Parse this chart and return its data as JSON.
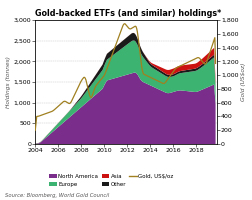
{
  "title": "Gold-backed ETFs (and similar) holdings*",
  "ylabel_left": "Holdings (tonnes)",
  "ylabel_right": "Gold (US$oz)",
  "source": "Source: Bloomberg, World Gold Council",
  "ylim_left": [
    0,
    3000
  ],
  "ylim_right": [
    0,
    1800
  ],
  "yticks_left": [
    0,
    500,
    1000,
    1500,
    2000,
    2500,
    3000
  ],
  "yticks_right": [
    0,
    200,
    400,
    600,
    800,
    1000,
    1200,
    1400,
    1600,
    1800
  ],
  "xticks": [
    2004,
    2006,
    2008,
    2010,
    2012,
    2014,
    2016,
    2018
  ],
  "colors": {
    "north_america": "#7B2D8B",
    "europe": "#3CB371",
    "asia": "#CC1111",
    "other": "#1A1A1A",
    "gold_line": "#A08020"
  },
  "background": "#FFFFFF",
  "plot_bg": "#FFFFFF"
}
